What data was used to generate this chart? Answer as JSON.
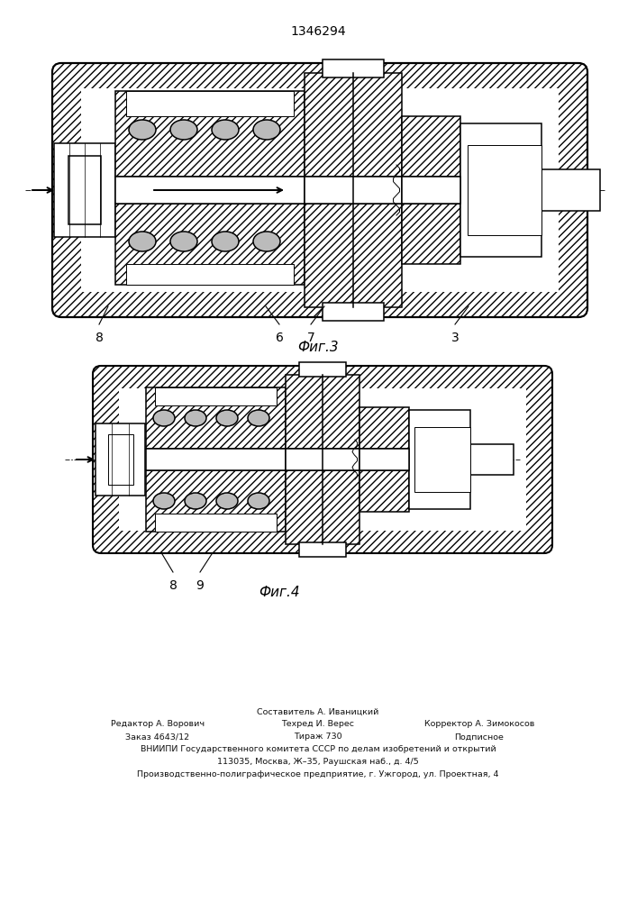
{
  "title": "1346294",
  "fig3_caption": "Фиг.3",
  "fig4_caption": "Фиг.4",
  "bg": "#ffffff",
  "lc": "#000000",
  "fig3_nums": [
    [
      "8",
      110,
      360
    ],
    [
      "6",
      310,
      360
    ],
    [
      "7",
      345,
      360
    ],
    [
      "3",
      505,
      360
    ]
  ],
  "fig4_nums": [
    [
      "8",
      192,
      635
    ],
    [
      "9",
      222,
      635
    ]
  ],
  "footer": [
    [
      "Составитель А. Иваницкий",
      353,
      790
    ],
    [
      "Редактор А. Ворович",
      175,
      804
    ],
    [
      "Техред И. Верес",
      353,
      804
    ],
    [
      "Корректор А. Зимокосов",
      532,
      804
    ],
    [
      "Заказ 4643/12",
      175,
      818
    ],
    [
      "Тираж 730",
      353,
      818
    ],
    [
      "Подписное",
      532,
      818
    ],
    [
      "ВНИИПИ Государственного комитета СССР по делам изобретений и открытий",
      353,
      832
    ],
    [
      "113035, Москва, Ж–35, Раушская наб., д. 4/5",
      353,
      846
    ],
    [
      "Производственно-полиграфическое предприятие, г. Ужгород, ул. Проектная, 4",
      353,
      860
    ]
  ]
}
